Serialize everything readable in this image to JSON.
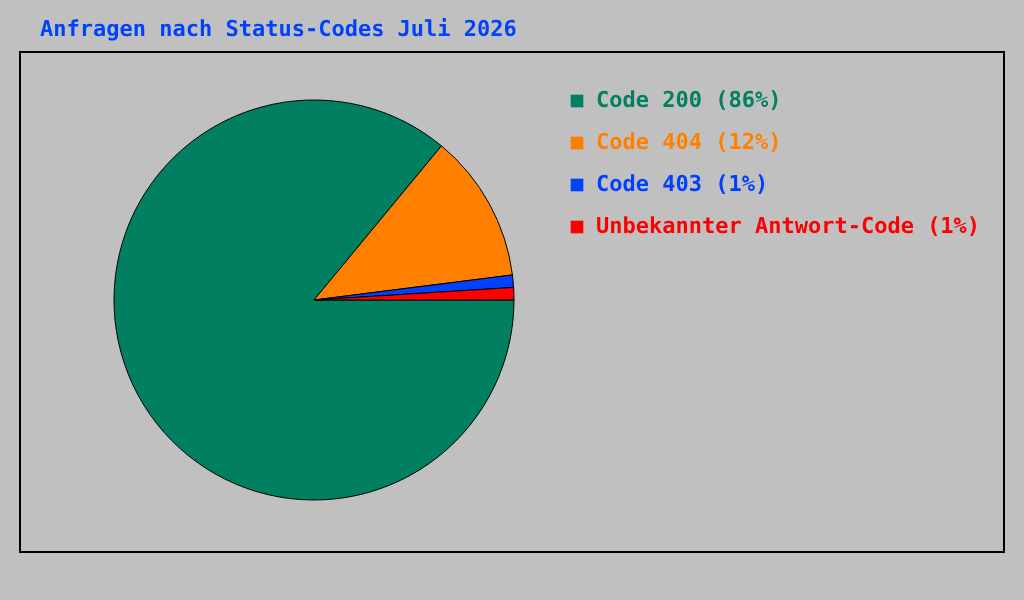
{
  "chart_data": {
    "type": "pie",
    "title": "Anfragen nach Status-Codes Juli 2026",
    "categories": [
      "Code 200 (86%)",
      "Code 404 (12%)",
      "Code 403 (1%)",
      "Unbekannter Antwort-Code (1%)"
    ],
    "values": [
      86,
      12,
      1,
      1
    ],
    "colors": [
      "#008060",
      "#ff8000",
      "#0040ff",
      "#ff0000"
    ],
    "legend": "top right"
  }
}
